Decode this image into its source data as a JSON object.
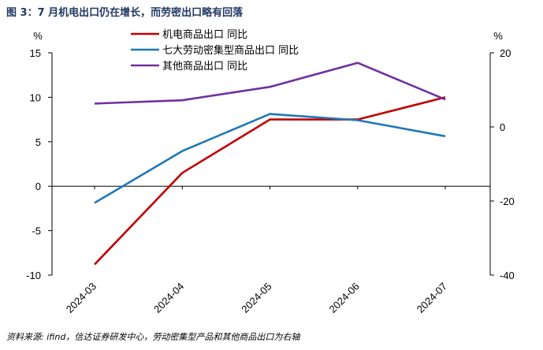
{
  "figure_title": "图 3：7 月机电出口仍在增长，而劳密出口略有回落",
  "source": "资料来源: ifind，信达证券研发中心，劳动密集型产品和其他商品出口为右轴",
  "chart_data": {
    "type": "line",
    "title": "7 月机电出口仍在增长，而劳密出口略有回落",
    "categories": [
      "2024-03",
      "2024-04",
      "2024-05",
      "2024-06",
      "2024-07"
    ],
    "left_axis": {
      "unit": "%",
      "ylim": [
        -10,
        15
      ],
      "ticks": [
        "15",
        "10",
        "5",
        "0",
        "-5",
        "-10"
      ],
      "tick_values": [
        15,
        10,
        5,
        0,
        -5,
        -10
      ]
    },
    "right_axis": {
      "unit": "%",
      "ylim": [
        -40,
        20
      ],
      "ticks": [
        "20",
        "0",
        "-20",
        "-40"
      ],
      "tick_values": [
        20,
        0,
        -20,
        -40
      ]
    },
    "legend_position": "top-center",
    "series": [
      {
        "name": "机电商品出口 同比",
        "axis": "left",
        "color": "#c00000",
        "values": [
          -8.8,
          1.5,
          7.5,
          7.5,
          10.0
        ]
      },
      {
        "name": "七大劳动密集型商品出口 同比",
        "axis": "right",
        "color": "#1f77b4",
        "values": [
          -20.5,
          -6.5,
          3.5,
          1.8,
          -2.5
        ]
      },
      {
        "name": "其他商品出口 同比",
        "axis": "right",
        "color": "#7030a0",
        "values": [
          6.3,
          7.2,
          10.8,
          17.3,
          7.4
        ]
      }
    ]
  }
}
